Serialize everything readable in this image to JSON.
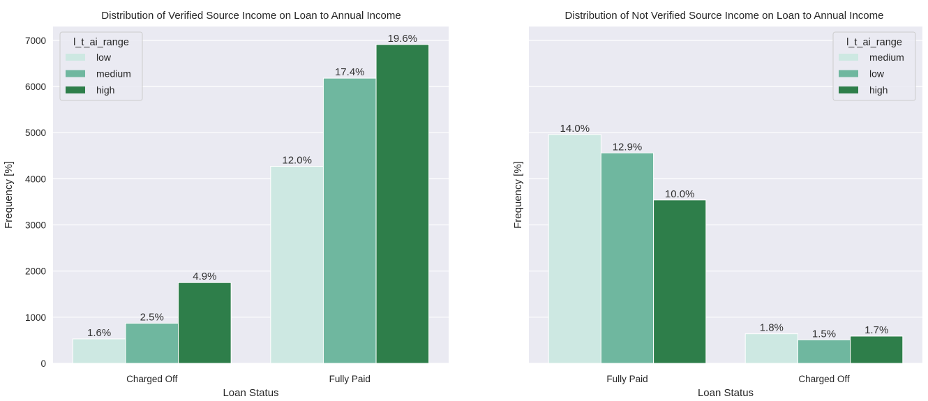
{
  "chart_data": [
    {
      "type": "bar",
      "title": "Distribution of Verified Source Income on Loan to Annual Income",
      "xlabel": "Loan Status",
      "ylabel": "Frequency [%]",
      "categories": [
        "Charged Off",
        "Fully Paid"
      ],
      "ylim": [
        0,
        7300
      ],
      "yticks": [
        0,
        1000,
        2000,
        3000,
        4000,
        5000,
        6000,
        7000
      ],
      "show_ytick_labels": true,
      "grid": true,
      "legend": {
        "title": "l_t_ai_range",
        "position": "top-left"
      },
      "series": [
        {
          "name": "low",
          "color": "#cde8e2",
          "values": [
            530,
            4270
          ],
          "labels": [
            "1.6%",
            "12.0%"
          ]
        },
        {
          "name": "medium",
          "color": "#6fb79f",
          "values": [
            870,
            6180
          ],
          "labels": [
            "2.5%",
            "17.4%"
          ]
        },
        {
          "name": "high",
          "color": "#2e7e4a",
          "values": [
            1750,
            6910
          ],
          "labels": [
            "4.9%",
            "19.6%"
          ]
        }
      ]
    },
    {
      "type": "bar",
      "title": "Distribution of Not Verified Source Income on Loan to Annual Income",
      "xlabel": "Loan Status",
      "ylabel": "Frequency [%]",
      "categories": [
        "Fully Paid",
        "Charged Off"
      ],
      "ylim": [
        0,
        7300
      ],
      "yticks": [
        0,
        1000,
        2000,
        3000,
        4000,
        5000,
        6000,
        7000
      ],
      "show_ytick_labels": false,
      "grid": true,
      "legend": {
        "title": "l_t_ai_range",
        "position": "top-right"
      },
      "series": [
        {
          "name": "medium",
          "color": "#cde8e2",
          "values": [
            4960,
            640
          ],
          "labels": [
            "14.0%",
            "1.8%"
          ]
        },
        {
          "name": "low",
          "color": "#6fb79f",
          "values": [
            4560,
            510
          ],
          "labels": [
            "12.9%",
            "1.5%"
          ]
        },
        {
          "name": "high",
          "color": "#2e7e4a",
          "values": [
            3540,
            590
          ],
          "labels": [
            "10.0%",
            "1.7%"
          ]
        }
      ]
    }
  ]
}
